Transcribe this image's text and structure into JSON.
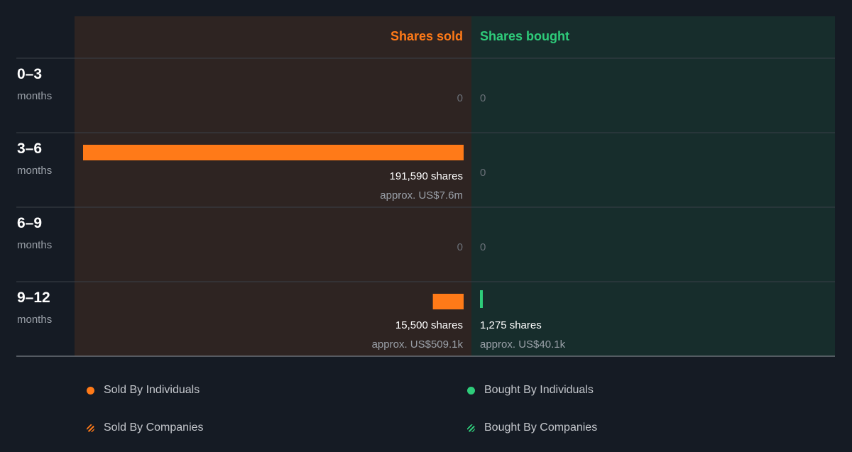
{
  "chart_data": {
    "type": "bar",
    "orientation": "horizontal-diverging",
    "colors": {
      "sold": "#ff7a18",
      "bought": "#2ecc7a",
      "sold_header": "#ff7a18",
      "bought_header": "#2ecc7a",
      "sold_bg": "#2e2422",
      "bought_bg": "#172d2c"
    },
    "headers": {
      "sold": "Shares sold",
      "bought": "Shares bought"
    },
    "xlim_sold": [
      0,
      191590
    ],
    "xlim_bought": [
      0,
      191590
    ],
    "rows": [
      {
        "period": "0–3",
        "unit": "months",
        "sold": 0,
        "bought": 0,
        "sold_label": "0",
        "bought_label": "0",
        "sold_value": "",
        "bought_value": ""
      },
      {
        "period": "3–6",
        "unit": "months",
        "sold": 191590,
        "bought": 0,
        "sold_label": "191,590 shares",
        "bought_label": "0",
        "sold_value": "approx. US$7.6m",
        "bought_value": ""
      },
      {
        "period": "6–9",
        "unit": "months",
        "sold": 0,
        "bought": 0,
        "sold_label": "0",
        "bought_label": "0",
        "sold_value": "",
        "bought_value": ""
      },
      {
        "period": "9–12",
        "unit": "months",
        "sold": 15500,
        "bought": 1275,
        "sold_label": "15,500 shares",
        "bought_label": "1,275 shares",
        "sold_value": "approx. US$509.1k",
        "bought_value": "approx. US$40.1k"
      }
    ],
    "legend": [
      {
        "label": "Sold By Individuals",
        "icon": "dot",
        "side": "sold"
      },
      {
        "label": "Bought By Individuals",
        "icon": "dot",
        "side": "bought"
      },
      {
        "label": "Sold By Companies",
        "icon": "hatch",
        "side": "sold"
      },
      {
        "label": "Bought By Companies",
        "icon": "hatch",
        "side": "bought"
      }
    ]
  }
}
